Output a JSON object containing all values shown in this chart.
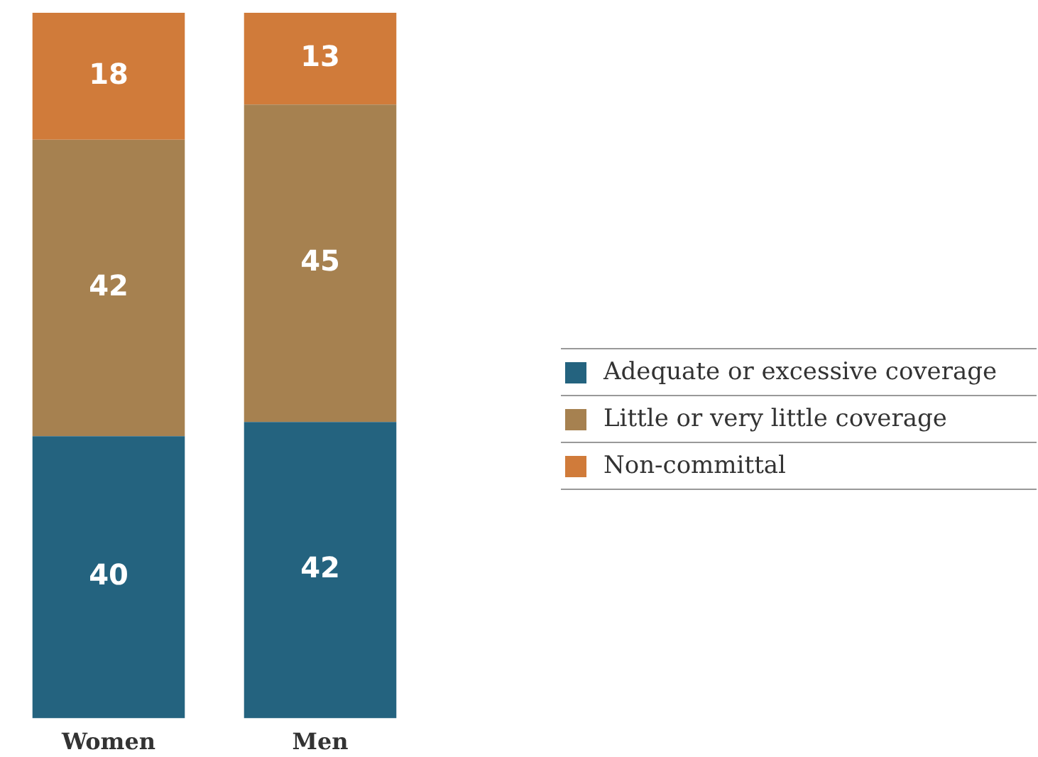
{
  "chart_data": {
    "type": "bar",
    "stacked": true,
    "categories": [
      "Women",
      "Men"
    ],
    "series": [
      {
        "name": "Adequate or excessive coverage",
        "color": "#24637f",
        "values": [
          40,
          42
        ]
      },
      {
        "name": "Little or very little coverage",
        "color": "#a68150",
        "values": [
          42,
          45
        ]
      },
      {
        "name": "Non-committal",
        "color": "#d07b3a",
        "values": [
          18,
          13
        ]
      }
    ],
    "data_labels": true,
    "legend": "right",
    "grid": false
  }
}
